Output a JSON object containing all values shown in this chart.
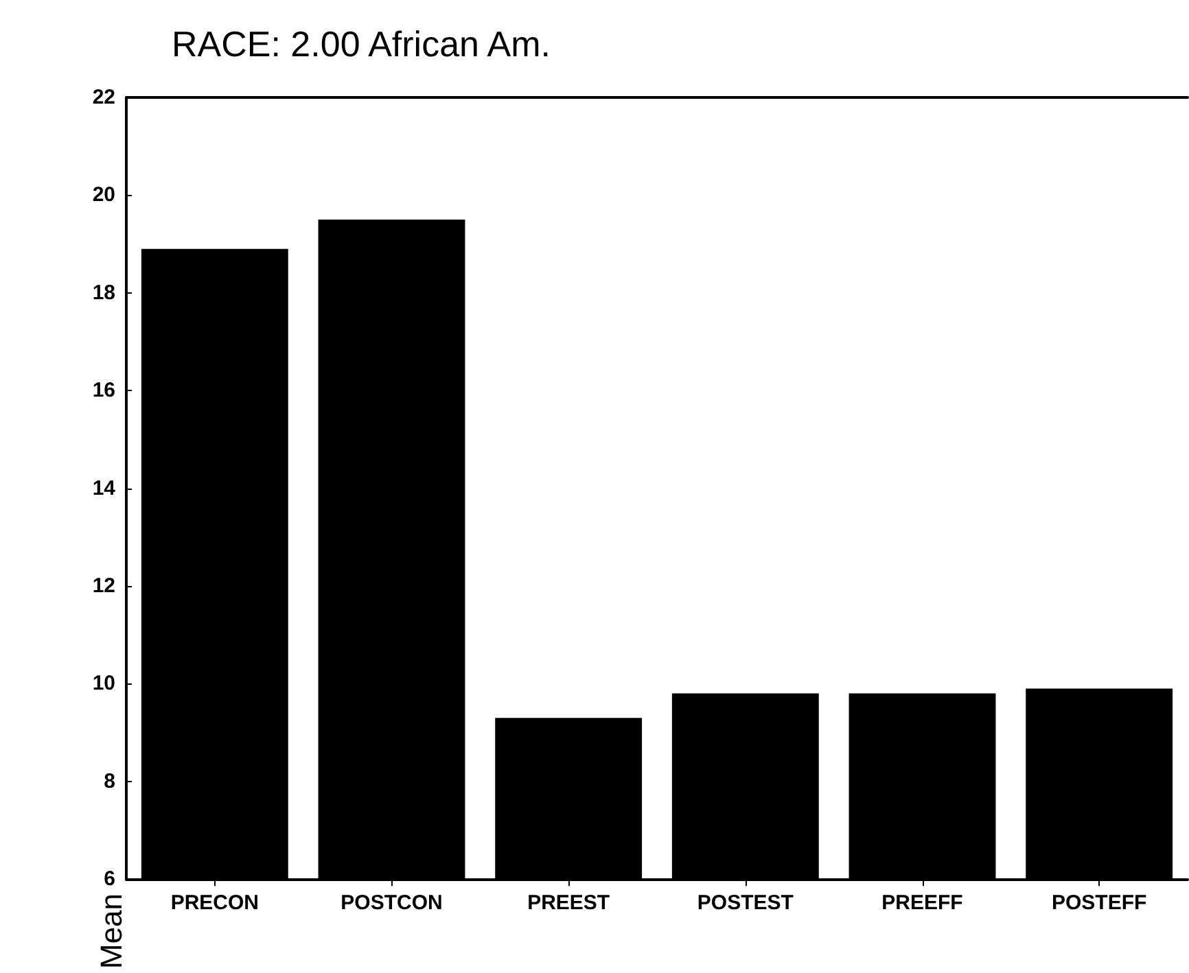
{
  "chart_data": {
    "type": "bar",
    "title": "RACE: 2.00 African Am.",
    "ylabel": "Mean",
    "categories": [
      "PRECON",
      "POSTCON",
      "PREEST",
      "POSTEST",
      "PREEFF",
      "POSTEFF"
    ],
    "series": [
      {
        "color": "#000000",
        "values": [
          18.9,
          19.5,
          9.3,
          9.8,
          9.8,
          9.9
        ]
      }
    ],
    "ylim": [
      6,
      22
    ],
    "yticks": [
      6,
      8,
      10,
      12,
      14,
      16,
      18,
      20,
      22
    ],
    "grid": false
  }
}
